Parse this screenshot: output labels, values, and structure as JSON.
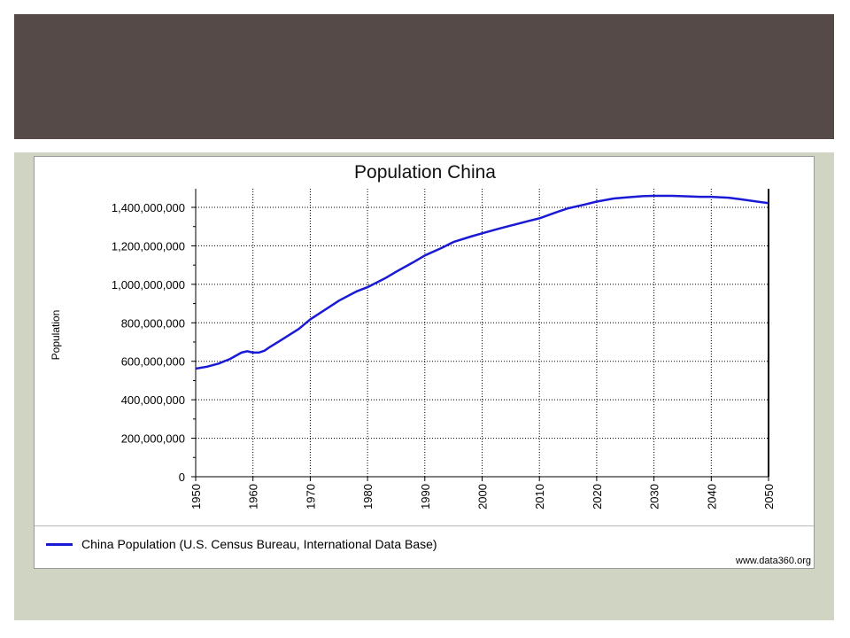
{
  "chart_data": {
    "type": "line",
    "title": "Population China",
    "xlabel": "",
    "ylabel": "Population",
    "xlim": [
      1950,
      2050
    ],
    "ylim": [
      0,
      1500000000
    ],
    "x_ticks": [
      "1950",
      "1960",
      "1970",
      "1980",
      "1990",
      "2000",
      "2010",
      "2020",
      "2030",
      "2040",
      "2050"
    ],
    "y_ticks": [
      "0",
      "200,000,000",
      "400,000,000",
      "600,000,000",
      "800,000,000",
      "1,000,000,000",
      "1,200,000,000",
      "1,400,000,000"
    ],
    "grid": true,
    "legend_position": "bottom",
    "series": [
      {
        "name": "China Population (U.S. Census Bureau, International Data Base)",
        "color": "#1a1ad6",
        "x": [
          1950,
          1952,
          1954,
          1956,
          1958,
          1959,
          1960,
          1961,
          1962,
          1963,
          1965,
          1968,
          1970,
          1973,
          1975,
          1978,
          1980,
          1983,
          1985,
          1988,
          1990,
          1993,
          1995,
          1998,
          2000,
          2003,
          2005,
          2008,
          2010,
          2013,
          2015,
          2018,
          2020,
          2023,
          2025,
          2028,
          2030,
          2033,
          2035,
          2038,
          2040,
          2043,
          2045,
          2048,
          2050
        ],
        "y": [
          562000000,
          572000000,
          588000000,
          612000000,
          645000000,
          652000000,
          645000000,
          645000000,
          655000000,
          675000000,
          712000000,
          768000000,
          818000000,
          876000000,
          915000000,
          962000000,
          985000000,
          1030000000,
          1065000000,
          1115000000,
          1150000000,
          1190000000,
          1220000000,
          1248000000,
          1265000000,
          1290000000,
          1305000000,
          1328000000,
          1343000000,
          1375000000,
          1395000000,
          1415000000,
          1430000000,
          1446000000,
          1451000000,
          1458000000,
          1460000000,
          1460000000,
          1458000000,
          1455000000,
          1455000000,
          1450000000,
          1443000000,
          1430000000,
          1422000000
        ]
      }
    ]
  },
  "source_note": "www.data360.org",
  "colors": {
    "banner": "#554a48",
    "panel": "#d0d4c2",
    "line": "#1a1ad6"
  }
}
